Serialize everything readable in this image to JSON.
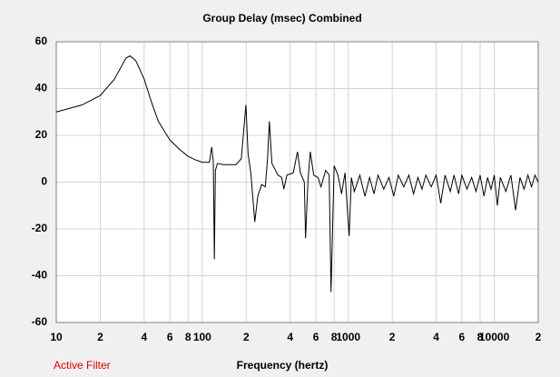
{
  "chart_data": {
    "type": "line",
    "title": "Group Delay (msec)    Combined",
    "x_label": "Frequency (hertz)",
    "annotation": "Active Filter",
    "xscale": "log",
    "xlim": [
      10,
      20000
    ],
    "ylim": [
      -60,
      60
    ],
    "yticks": [
      -60,
      -40,
      -20,
      0,
      20,
      40,
      60
    ],
    "xticks": [
      10,
      {
        "value": 20,
        "label": "2"
      },
      {
        "value": 40,
        "label": "4"
      },
      {
        "value": 60,
        "label": "6"
      },
      {
        "value": 80,
        "label": "8"
      },
      100,
      {
        "value": 200,
        "label": "2"
      },
      {
        "value": 400,
        "label": "4"
      },
      {
        "value": 600,
        "label": "6"
      },
      {
        "value": 800,
        "label": "8"
      },
      1000,
      {
        "value": 2000,
        "label": "2"
      },
      {
        "value": 4000,
        "label": "4"
      },
      {
        "value": 6000,
        "label": "6"
      },
      {
        "value": 8000,
        "label": "8"
      },
      10000,
      {
        "value": 20000,
        "label": "2"
      }
    ],
    "grid": true,
    "series": [
      {
        "color": "#000000",
        "x": [
          10,
          15,
          20,
          25,
          30,
          32,
          35,
          40,
          45,
          50,
          60,
          70,
          80,
          90,
          100,
          112,
          116,
          119,
          121,
          123,
          127,
          140,
          170,
          185,
          199,
          206,
          215,
          229,
          240,
          255,
          270,
          280,
          288,
          300,
          330,
          350,
          362,
          380,
          420,
          449,
          470,
          500,
          510,
          530,
          549,
          580,
          620,
          650,
          700,
          740,
          762,
          800,
          850,
          900,
          950,
          1014,
          1050,
          1100,
          1200,
          1300,
          1400,
          1500,
          1600,
          1750,
          1900,
          2050,
          2200,
          2400,
          2600,
          2800,
          3000,
          3200,
          3400,
          3700,
          4000,
          4300,
          4600,
          5000,
          5300,
          5700,
          6000,
          6500,
          7000,
          7500,
          8000,
          8500,
          9000,
          9500,
          10000,
          10500,
          11000,
          12000,
          13000,
          14000,
          15000,
          16000,
          17000,
          18000,
          19000,
          20000
        ],
        "values": [
          30,
          33,
          37,
          44,
          53,
          54,
          52,
          44,
          34,
          26,
          18,
          14,
          11,
          9.5,
          8.5,
          8.5,
          15,
          9,
          -33,
          5,
          8,
          7.5,
          7.5,
          10,
          33,
          12,
          4,
          -17,
          -6,
          -1,
          -2,
          10,
          26,
          8,
          3,
          2,
          -3,
          3,
          4,
          13,
          4,
          0,
          -24,
          1,
          13,
          3,
          2,
          -2,
          5,
          3,
          -47,
          7,
          3,
          -5,
          4,
          -23,
          2,
          -4,
          3,
          -6,
          2,
          -5,
          3,
          -3,
          2,
          -6,
          3,
          -2,
          3,
          -5,
          2,
          -3,
          3,
          -2,
          3,
          -9,
          3,
          -4,
          3,
          -5,
          3,
          -3,
          2,
          -4,
          3,
          -6,
          2,
          -3,
          3,
          -10,
          2,
          -4,
          3,
          -12,
          2,
          -3,
          3,
          -2,
          3,
          0
        ]
      }
    ]
  }
}
